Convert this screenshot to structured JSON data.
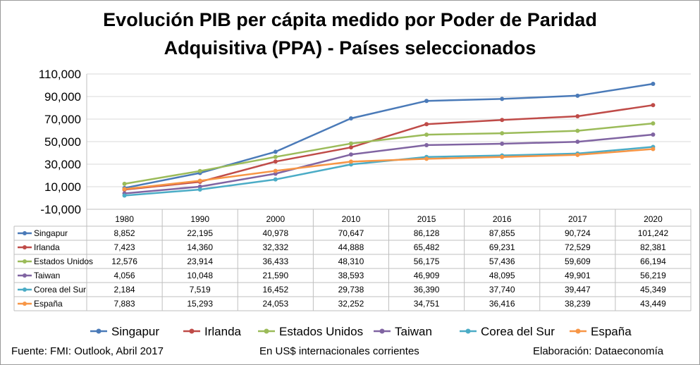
{
  "title_line1": "Evolución PIB per cápita medido por Poder de Paridad",
  "title_line2": "Adquisitiva (PPA) - Países seleccionados",
  "footer": {
    "source": "Fuente: FMI: Outlook, Abril 2017",
    "units": "En US$ internacionales corrientes",
    "credit": "Elaboración: Dataeconomía"
  },
  "chart_data": {
    "type": "line",
    "categories": [
      "1980",
      "1990",
      "2000",
      "2010",
      "2015",
      "2016",
      "2017",
      "2020"
    ],
    "ylim": [
      -10000,
      110000
    ],
    "y_ticks": [
      -10000,
      10000,
      30000,
      50000,
      70000,
      90000,
      110000
    ],
    "y_tick_labels": [
      "-10,000",
      "10,000",
      "30,000",
      "50,000",
      "70,000",
      "90,000",
      "110,000"
    ],
    "grid": "horizontal",
    "legend": "bottom",
    "data_table": true,
    "series": [
      {
        "name": "Singapur",
        "color": "#4a7ab8",
        "values": [
          8852,
          22195,
          40978,
          70647,
          86128,
          87855,
          90724,
          101242
        ],
        "labels": [
          "8,852",
          "22,195",
          "40,978",
          "70,647",
          "86,128",
          "87,855",
          "90,724",
          "101,242"
        ]
      },
      {
        "name": "Irlanda",
        "color": "#bf4b48",
        "values": [
          7423,
          14360,
          32332,
          44888,
          65482,
          69231,
          72529,
          82381
        ],
        "labels": [
          "7,423",
          "14,360",
          "32,332",
          "44,888",
          "65,482",
          "69,231",
          "72,529",
          "82,381"
        ]
      },
      {
        "name": "Estados Unidos",
        "color": "#9bbb59",
        "values": [
          12576,
          23914,
          36433,
          48310,
          56175,
          57436,
          59609,
          66194
        ],
        "labels": [
          "12,576",
          "23,914",
          "36,433",
          "48,310",
          "56,175",
          "57,436",
          "59,609",
          "66,194"
        ]
      },
      {
        "name": "Taiwan",
        "color": "#8064a2",
        "values": [
          4056,
          10048,
          21590,
          38593,
          46909,
          48095,
          49901,
          56219
        ],
        "labels": [
          "4,056",
          "10,048",
          "21,590",
          "38,593",
          "46,909",
          "48,095",
          "49,901",
          "56,219"
        ]
      },
      {
        "name": "Corea del Sur",
        "color": "#4bacc6",
        "values": [
          2184,
          7519,
          16452,
          29738,
          36390,
          37740,
          39447,
          45349
        ],
        "labels": [
          "2,184",
          "7,519",
          "16,452",
          "29,738",
          "36,390",
          "37,740",
          "39,447",
          "45,349"
        ]
      },
      {
        "name": "España",
        "color": "#f79646",
        "values": [
          7883,
          15293,
          24053,
          32252,
          34751,
          36416,
          38239,
          43449
        ],
        "labels": [
          "7,883",
          "15,293",
          "24,053",
          "32,252",
          "34,751",
          "36,416",
          "38,239",
          "43,449"
        ]
      }
    ]
  }
}
